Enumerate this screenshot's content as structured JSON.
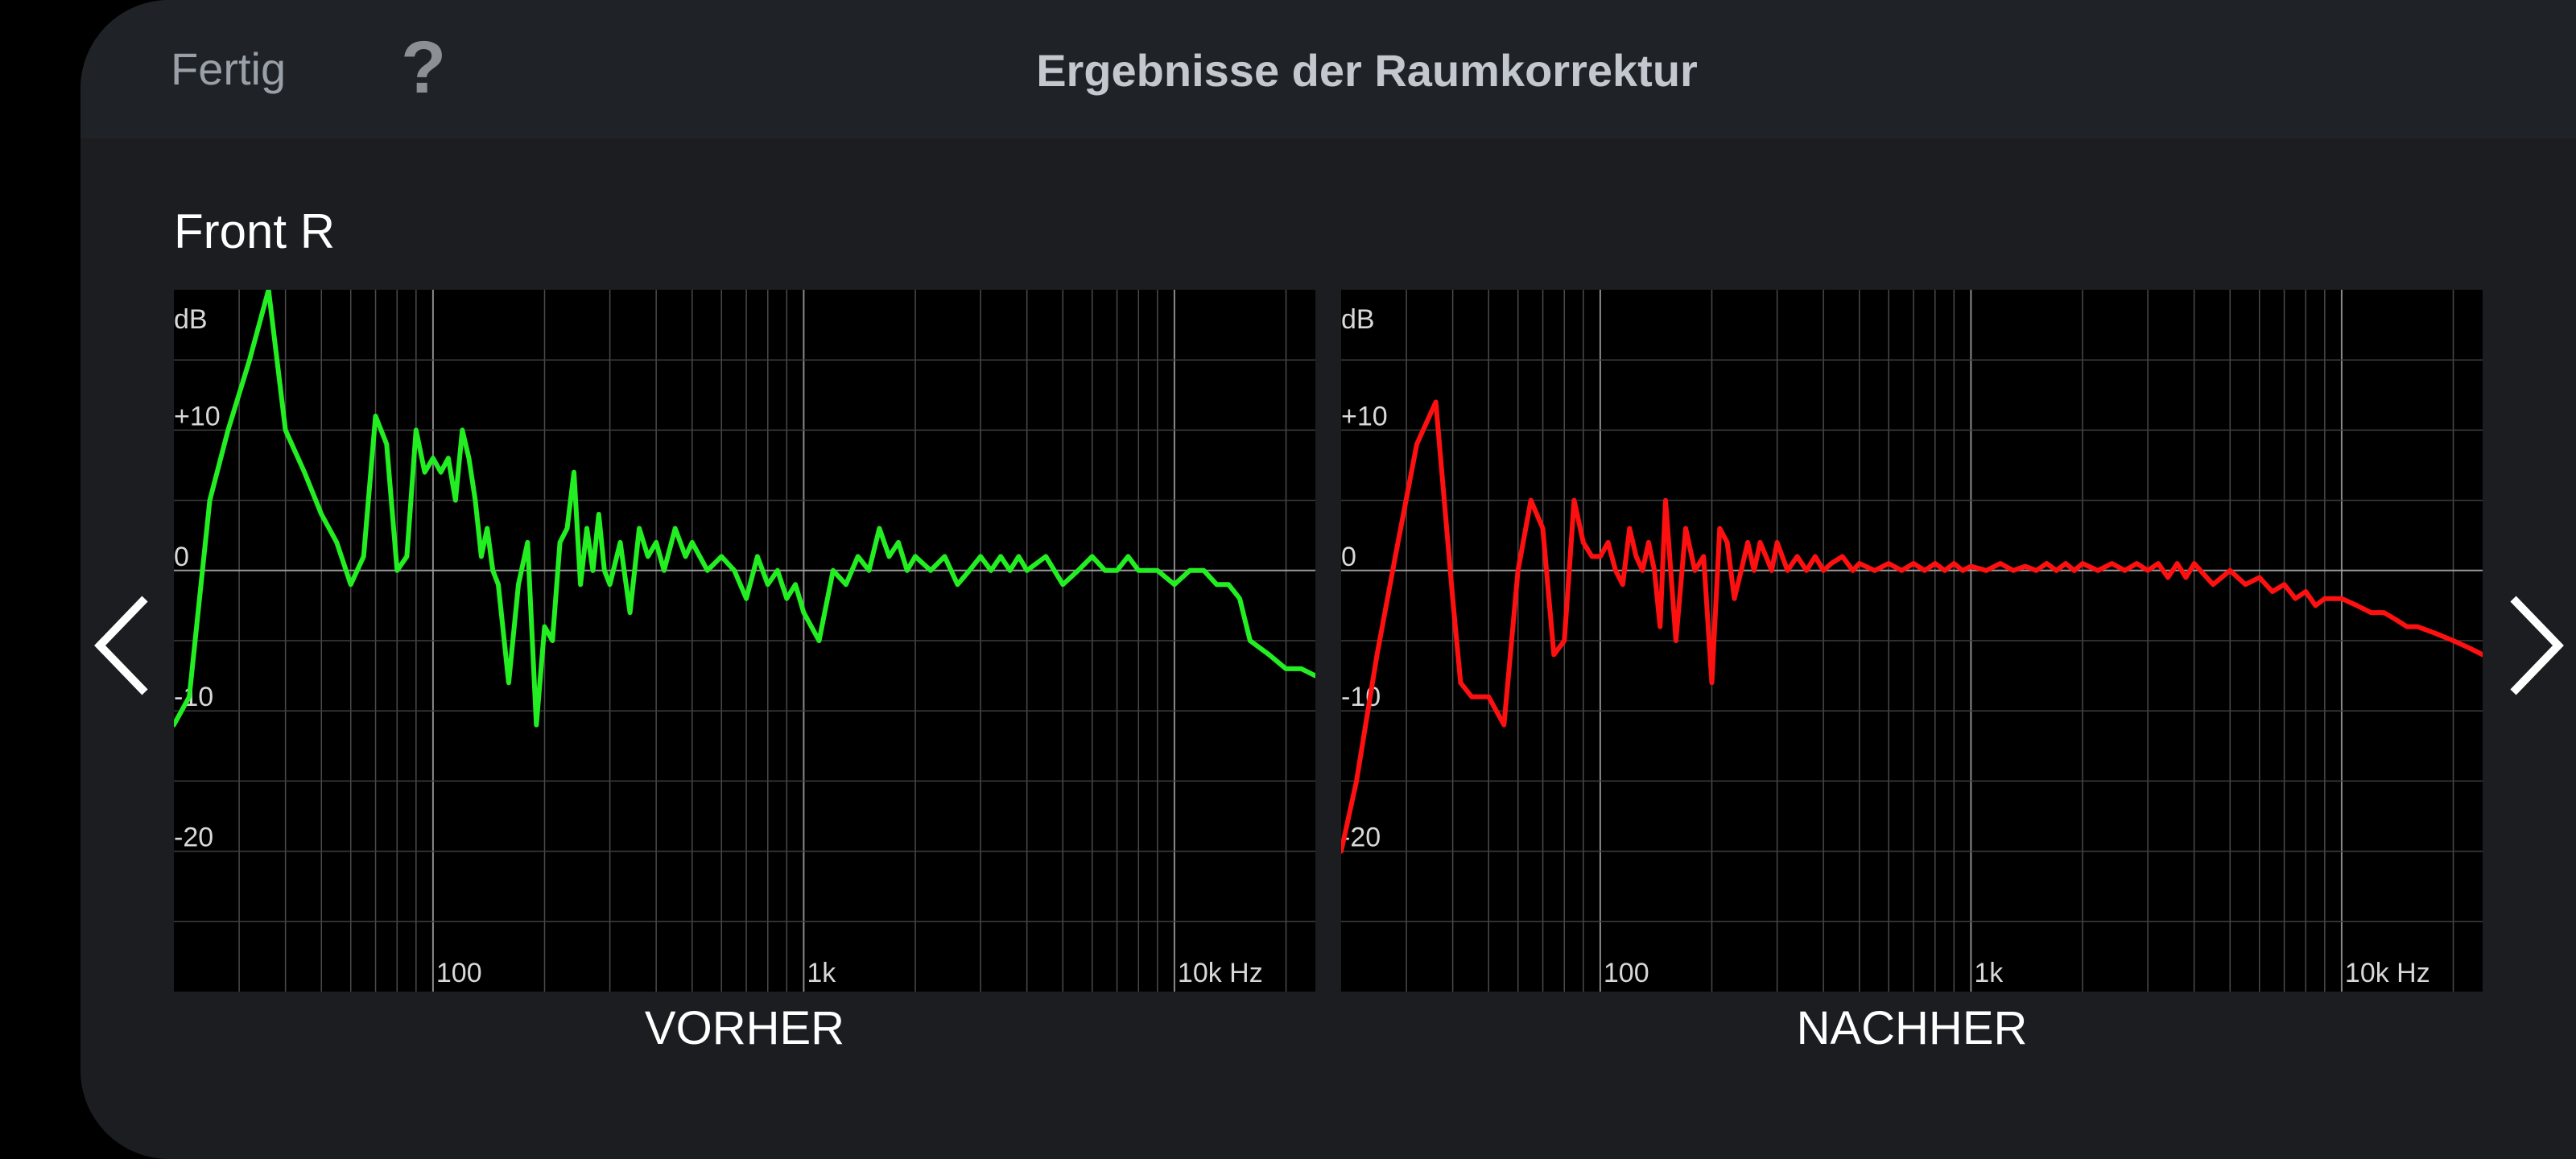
{
  "header": {
    "done_label": "Fertig",
    "help_label": "?",
    "title": "Ergebnisse der Raumkorrektur"
  },
  "channel": "Front R",
  "nav": {
    "prev_icon": "chevron-left-icon",
    "next_icon": "chevron-right-icon"
  },
  "chart_data": [
    {
      "type": "line",
      "caption": "VORHER",
      "color": "#22ee22",
      "xscale": "log",
      "xlim": [
        20,
        24000
      ],
      "ylim": [
        -30,
        20
      ],
      "grid": true,
      "ylabel": "dB",
      "x_ticks": [
        "100",
        "1k",
        "10k Hz"
      ],
      "y_ticks": [
        "+10",
        "0",
        "-10",
        "-20"
      ],
      "series": [
        {
          "x": [
            20,
            22,
            25,
            28,
            32,
            36,
            40,
            45,
            50,
            55,
            60,
            65,
            70,
            75,
            80,
            85,
            90,
            95,
            100,
            105,
            110,
            115,
            120,
            125,
            130,
            135,
            140,
            145,
            150,
            160,
            170,
            180,
            190,
            200,
            210,
            220,
            230,
            240,
            250,
            260,
            270,
            280,
            290,
            300,
            320,
            340,
            360,
            380,
            400,
            420,
            450,
            480,
            500,
            550,
            600,
            650,
            700,
            750,
            800,
            850,
            900,
            950,
            1000,
            1100,
            1200,
            1300,
            1400,
            1500,
            1600,
            1700,
            1800,
            1900,
            2000,
            2200,
            2400,
            2600,
            2800,
            3000,
            3200,
            3400,
            3600,
            3800,
            4000,
            4500,
            5000,
            5500,
            6000,
            6500,
            7000,
            7500,
            8000,
            9000,
            10000,
            11000,
            12000,
            13000,
            14000,
            15000,
            16000,
            18000,
            20000,
            22000,
            24000
          ],
          "y": [
            -11,
            -9,
            5,
            10,
            15,
            20,
            10,
            7,
            4,
            2,
            -1,
            1,
            11,
            9,
            0,
            1,
            10,
            7,
            8,
            7,
            8,
            5,
            10,
            8,
            5,
            1,
            3,
            0,
            -1,
            -8,
            -1,
            2,
            -11,
            -4,
            -5,
            2,
            3,
            7,
            -1,
            3,
            0,
            4,
            0,
            -1,
            2,
            -3,
            3,
            1,
            2,
            0,
            3,
            1,
            2,
            0,
            1,
            0,
            -2,
            1,
            -1,
            0,
            -2,
            -1,
            -3,
            -5,
            0,
            -1,
            1,
            0,
            3,
            1,
            2,
            0,
            1,
            0,
            1,
            -1,
            0,
            1,
            0,
            1,
            0,
            1,
            0,
            1,
            -1,
            0,
            1,
            0,
            0,
            1,
            0,
            0,
            -1,
            0,
            0,
            -1,
            -1,
            -2,
            -5,
            -6,
            -7,
            -7,
            -7.5
          ]
        }
      ]
    },
    {
      "type": "line",
      "caption": "NACHHER",
      "color": "#ff1010",
      "xscale": "log",
      "xlim": [
        20,
        24000
      ],
      "ylim": [
        -30,
        20
      ],
      "grid": true,
      "ylabel": "dB",
      "x_ticks": [
        "100",
        "1k",
        "10k Hz"
      ],
      "y_ticks": [
        "+10",
        "0",
        "-10",
        "-20"
      ],
      "series": [
        {
          "x": [
            20,
            22,
            25,
            28,
            32,
            36,
            40,
            42,
            45,
            50,
            55,
            60,
            65,
            70,
            75,
            80,
            85,
            90,
            95,
            100,
            105,
            110,
            115,
            120,
            125,
            130,
            135,
            140,
            145,
            150,
            160,
            170,
            180,
            190,
            200,
            210,
            220,
            230,
            240,
            250,
            260,
            270,
            280,
            290,
            300,
            320,
            340,
            360,
            380,
            400,
            420,
            450,
            480,
            500,
            550,
            600,
            650,
            700,
            750,
            800,
            850,
            900,
            950,
            1000,
            1100,
            1200,
            1300,
            1400,
            1500,
            1600,
            1700,
            1800,
            1900,
            2000,
            2200,
            2400,
            2600,
            2800,
            3000,
            3200,
            3400,
            3600,
            3800,
            4000,
            4500,
            5000,
            5500,
            6000,
            6500,
            7000,
            7500,
            8000,
            8500,
            9000,
            10000,
            11000,
            12000,
            13000,
            14000,
            15000,
            16000,
            18000,
            20000,
            22000,
            24000
          ],
          "y": [
            -20,
            -15,
            -6,
            1,
            9,
            12,
            -2,
            -8,
            -9,
            -9,
            -11,
            0,
            5,
            3,
            -6,
            -5,
            5,
            2,
            1,
            1,
            2,
            0,
            -1,
            3,
            1,
            0,
            2,
            0,
            -4,
            5,
            -5,
            3,
            0,
            1,
            -8,
            3,
            2,
            -2,
            0,
            2,
            0,
            2,
            1,
            0,
            2,
            0,
            1,
            0,
            1,
            0,
            0.5,
            1,
            0,
            0.5,
            0,
            0.5,
            0,
            0.5,
            0,
            0.5,
            0,
            0.5,
            0,
            0.3,
            0,
            0.5,
            0,
            0.3,
            0,
            0.5,
            0,
            0.5,
            0,
            0.5,
            0,
            0.5,
            0,
            0.5,
            0,
            0.5,
            -0.5,
            0.5,
            -0.5,
            0.5,
            -1,
            0,
            -1,
            -0.5,
            -1.5,
            -1,
            -2,
            -1.5,
            -2.5,
            -2,
            -2,
            -2.5,
            -3,
            -3,
            -3.5,
            -4,
            -4,
            -4.5,
            -5,
            -5.5,
            -6
          ]
        }
      ]
    }
  ]
}
